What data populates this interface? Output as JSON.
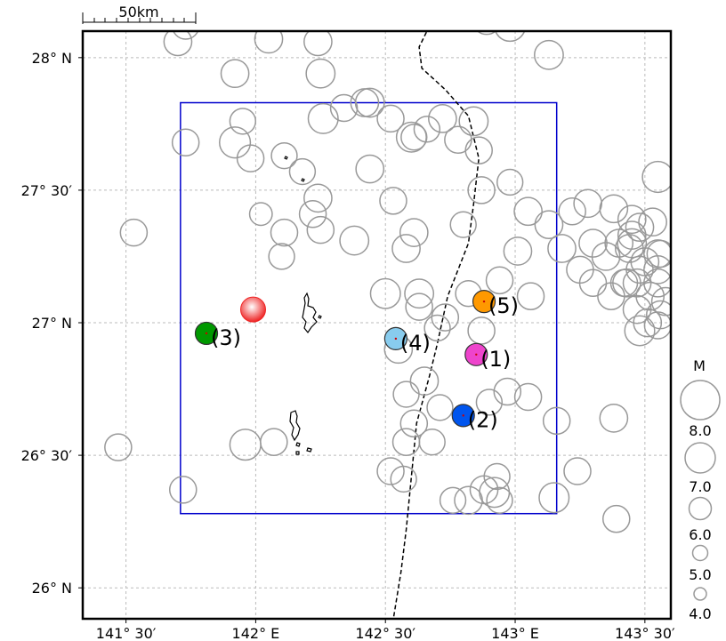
{
  "scale_bar": {
    "label": "50km"
  },
  "axes": {
    "lon_range": [
      141.3333,
      143.6
    ],
    "lat_range": [
      25.8833,
      28.1
    ],
    "lon_ticks": [
      {
        "value": 141.5,
        "label": "141° 30′"
      },
      {
        "value": 142.0,
        "label": "142° E"
      },
      {
        "value": 142.5,
        "label": "142° 30′"
      },
      {
        "value": 143.0,
        "label": "143° E"
      },
      {
        "value": 143.5,
        "label": "143° 30′"
      }
    ],
    "lat_ticks": [
      {
        "value": 26.0,
        "label": "26° N"
      },
      {
        "value": 26.5,
        "label": "26° 30′"
      },
      {
        "value": 27.0,
        "label": "27° N"
      },
      {
        "value": 27.5,
        "label": "27° 30′"
      },
      {
        "value": 28.0,
        "label": "28° N"
      }
    ],
    "grid": true
  },
  "study_area": {
    "color": "#0000cc",
    "lon": [
      141.71,
      143.16
    ],
    "lat": [
      26.28,
      27.83
    ]
  },
  "trench": {
    "points": [
      [
        142.67,
        28.12
      ],
      [
        142.63,
        28.04
      ],
      [
        142.64,
        27.96
      ],
      [
        142.73,
        27.88
      ],
      [
        142.82,
        27.78
      ],
      [
        142.86,
        27.62
      ],
      [
        142.84,
        27.45
      ],
      [
        142.82,
        27.3
      ],
      [
        142.74,
        27.1
      ],
      [
        142.7,
        26.92
      ],
      [
        142.67,
        26.8
      ],
      [
        142.62,
        26.62
      ],
      [
        142.6,
        26.42
      ],
      [
        142.58,
        26.22
      ],
      [
        142.56,
        26.06
      ],
      [
        142.53,
        25.88
      ]
    ]
  },
  "mainshock": {
    "lon": 141.99,
    "lat": 27.05,
    "mag": 6.9,
    "color": "#ee2222"
  },
  "events": [
    {
      "id": "(1)",
      "lon": 142.85,
      "lat": 26.88,
      "mag": 6.3,
      "color": "#ee44cc"
    },
    {
      "id": "(2)",
      "lon": 142.8,
      "lat": 26.65,
      "mag": 6.3,
      "color": "#0055ee"
    },
    {
      "id": "(3)",
      "lon": 141.81,
      "lat": 26.96,
      "mag": 6.3,
      "color": "#009900"
    },
    {
      "id": "(4)",
      "lon": 142.54,
      "lat": 26.94,
      "mag": 6.5,
      "color": "#88ccee"
    },
    {
      "id": "(5)",
      "lon": 142.88,
      "lat": 27.08,
      "mag": 6.3,
      "color": "#ff9900"
    }
  ],
  "background_events": [
    [
      141.7,
      28.06,
      6.0
    ],
    [
      141.92,
      27.94,
      6.0
    ],
    [
      141.95,
      27.76,
      5.8
    ],
    [
      141.92,
      27.68,
      6.3
    ],
    [
      142.02,
      27.41,
      5.5
    ],
    [
      142.1,
      27.25,
      5.8
    ],
    [
      142.18,
      27.57,
      5.8
    ],
    [
      142.25,
      27.35,
      5.9
    ],
    [
      142.24,
      27.47,
      6.0
    ],
    [
      142.38,
      27.31,
      6.1
    ],
    [
      142.44,
      27.58,
      6.0
    ],
    [
      142.52,
      27.77,
      5.9
    ],
    [
      142.61,
      27.7,
      5.8
    ],
    [
      142.66,
      27.73,
      5.8
    ],
    [
      142.72,
      27.77,
      6.0
    ],
    [
      142.05,
      28.07,
      6.0
    ],
    [
      142.24,
      28.06,
      6.0
    ],
    [
      142.25,
      27.94,
      6.1
    ],
    [
      142.42,
      27.83,
      6.0
    ],
    [
      142.44,
      27.83,
      6.1
    ],
    [
      142.26,
      27.77,
      6.2
    ],
    [
      142.34,
      27.81,
      5.9
    ],
    [
      142.6,
      27.7,
      6.2
    ],
    [
      142.78,
      27.69,
      5.9
    ],
    [
      142.8,
      27.37,
      5.8
    ],
    [
      142.86,
      27.65,
      5.9
    ],
    [
      142.84,
      27.76,
      6.1
    ],
    [
      142.98,
      27.53,
      5.8
    ],
    [
      142.87,
      27.5,
      5.9
    ],
    [
      142.53,
      27.46,
      5.9
    ],
    [
      142.61,
      27.34,
      6.0
    ],
    [
      142.58,
      27.28,
      6.0
    ],
    [
      142.82,
      27.11,
      5.8
    ],
    [
      142.63,
      27.11,
      6.1
    ],
    [
      142.7,
      26.98,
      5.8
    ],
    [
      142.87,
      26.97,
      5.9
    ],
    [
      142.55,
      26.9,
      6.0
    ],
    [
      142.65,
      26.78,
      6.0
    ],
    [
      142.58,
      26.73,
      5.8
    ],
    [
      142.71,
      26.68,
      5.8
    ],
    [
      142.68,
      26.55,
      5.8
    ],
    [
      142.9,
      26.7,
      5.8
    ],
    [
      143.05,
      26.72,
      5.9
    ],
    [
      143.16,
      26.63,
      5.9
    ],
    [
      143.15,
      26.34,
      6.2
    ],
    [
      142.93,
      26.42,
      5.8
    ],
    [
      142.94,
      26.33,
      5.8
    ],
    [
      142.88,
      26.37,
      6.0
    ],
    [
      142.76,
      26.33,
      5.8
    ],
    [
      142.82,
      26.33,
      6.0
    ],
    [
      142.57,
      26.41,
      5.8
    ],
    [
      142.52,
      26.44,
      5.9
    ],
    [
      142.61,
      26.62,
      5.9
    ],
    [
      142.58,
      26.55,
      5.9
    ],
    [
      142.97,
      26.74,
      5.9
    ],
    [
      143.24,
      26.44,
      5.9
    ],
    [
      141.96,
      26.54,
      6.3
    ],
    [
      142.07,
      26.55,
      5.9
    ],
    [
      141.47,
      26.53,
      5.9
    ],
    [
      141.72,
      26.37,
      5.9
    ],
    [
      141.53,
      27.34,
      5.9
    ],
    [
      141.73,
      27.68,
      5.9
    ],
    [
      141.98,
      27.62,
      5.9
    ],
    [
      142.11,
      27.63,
      5.8
    ],
    [
      142.22,
      27.41,
      5.9
    ],
    [
      142.11,
      27.34,
      5.9
    ],
    [
      142.5,
      27.11,
      6.2
    ],
    [
      142.63,
      27.06,
      5.9
    ],
    [
      142.73,
      27.02,
      5.9
    ],
    [
      142.94,
      27.16,
      5.9
    ],
    [
      143.01,
      27.27,
      6.0
    ],
    [
      143.05,
      27.42,
      6.0
    ],
    [
      143.13,
      27.37,
      6.0
    ],
    [
      143.18,
      27.28,
      6.0
    ],
    [
      143.25,
      27.2,
      5.9
    ],
    [
      143.3,
      27.15,
      5.9
    ],
    [
      143.37,
      27.1,
      5.9
    ],
    [
      143.42,
      27.15,
      5.9
    ],
    [
      143.47,
      27.05,
      6.0
    ],
    [
      143.52,
      27.1,
      6.0
    ],
    [
      143.55,
      27.2,
      6.0
    ],
    [
      143.55,
      27.15,
      6.0
    ],
    [
      143.58,
      27.08,
      6.0
    ],
    [
      143.35,
      27.25,
      6.0
    ],
    [
      143.3,
      27.3,
      6.0
    ],
    [
      143.4,
      27.3,
      6.0
    ],
    [
      143.48,
      27.36,
      6.0
    ],
    [
      143.53,
      27.38,
      6.0
    ],
    [
      143.44,
      27.28,
      6.0
    ],
    [
      143.38,
      27.43,
      6.0
    ],
    [
      143.45,
      27.39,
      6.0
    ],
    [
      143.28,
      27.45,
      6.0
    ],
    [
      143.22,
      27.42,
      5.9
    ],
    [
      143.48,
      27.2,
      5.9
    ],
    [
      143.55,
      27.26,
      6.0
    ],
    [
      143.48,
      26.97,
      6.2
    ],
    [
      143.45,
      27.3,
      6.1
    ],
    [
      143.51,
      27.0,
      6.0
    ],
    [
      143.43,
      27.15,
      6.0
    ],
    [
      143.55,
      26.99,
      5.9
    ],
    [
      143.47,
      27.15,
      6.0
    ],
    [
      143.56,
      27.26,
      5.9
    ],
    [
      143.45,
      27.33,
      6.0
    ],
    [
      143.5,
      27.23,
      6.0
    ],
    [
      143.56,
      27.03,
      6.0
    ],
    [
      143.55,
      27.55,
      6.3
    ],
    [
      143.13,
      28.01,
      6.1
    ],
    [
      143.39,
      26.26,
      5.9
    ],
    [
      143.06,
      27.1,
      5.9
    ],
    [
      143.38,
      26.64,
      6.0
    ],
    [
      142.92,
      26.36,
      6.2
    ],
    [
      142.98,
      28.12,
      6.3
    ],
    [
      142.89,
      28.14,
      6.0
    ],
    [
      141.73,
      28.12,
      5.9
    ]
  ],
  "legend": {
    "title": "M",
    "items": [
      {
        "mag": 8.0,
        "label": "8.0"
      },
      {
        "mag": 7.0,
        "label": "7.0"
      },
      {
        "mag": 6.0,
        "label": "6.0"
      },
      {
        "mag": 5.0,
        "label": "5.0"
      },
      {
        "mag": 4.0,
        "label": "4.0"
      }
    ]
  }
}
